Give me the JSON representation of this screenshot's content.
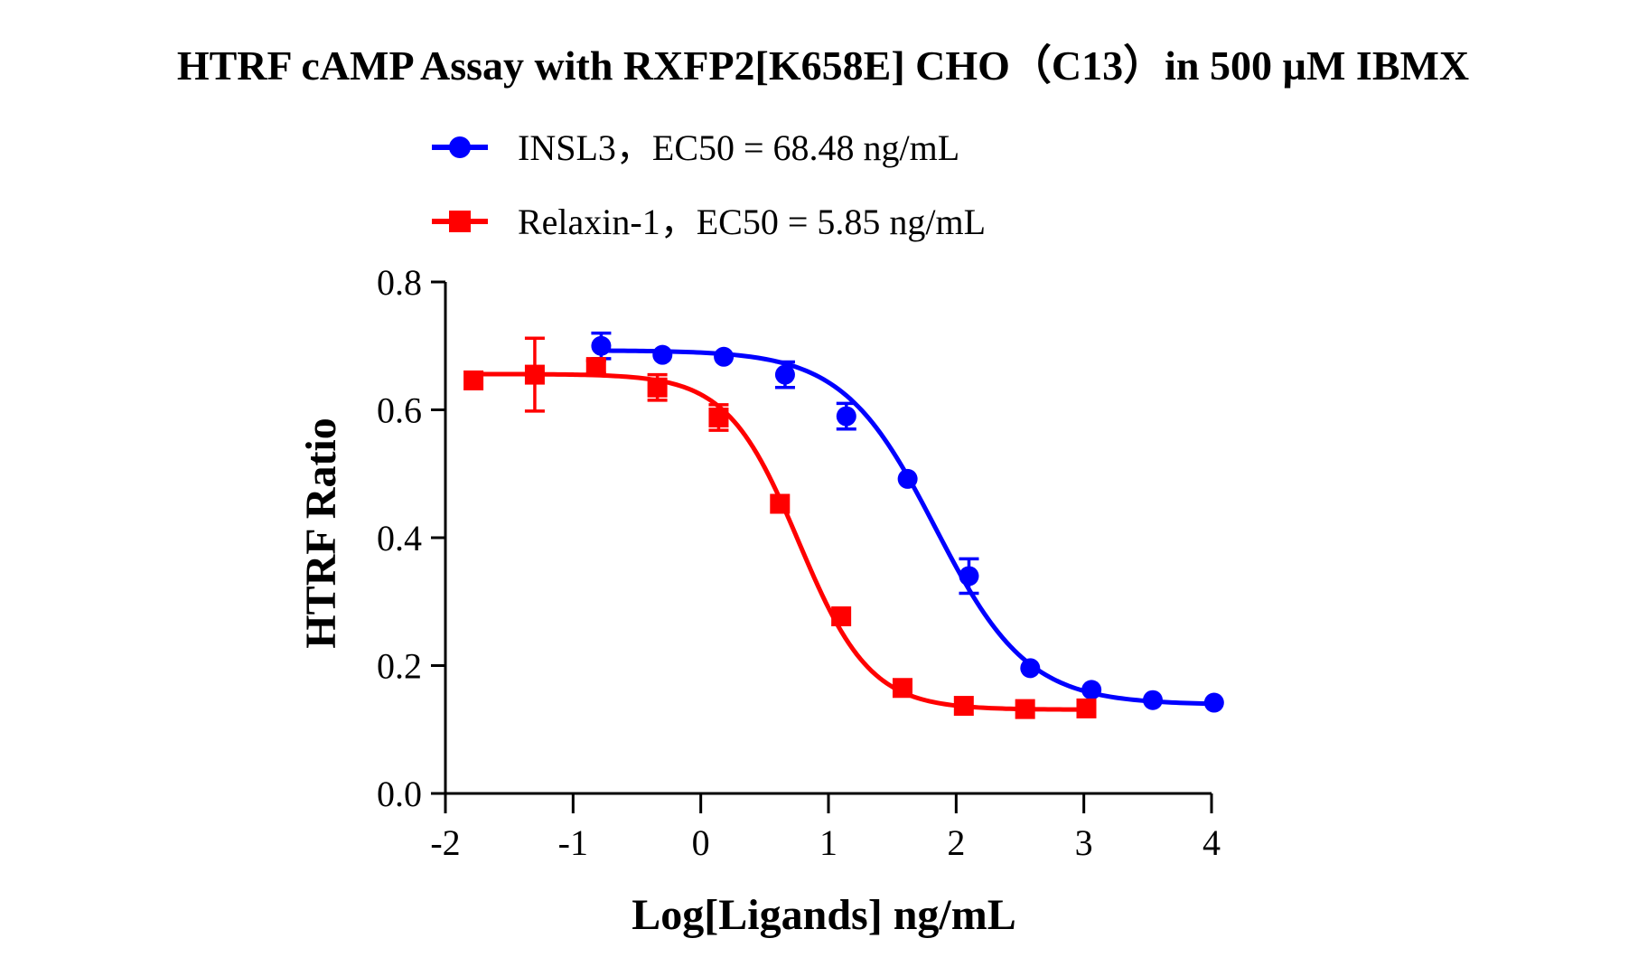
{
  "chart_data": {
    "type": "scatter",
    "title": "HTRF cAMP Assay with RXFP2[K658E] CHO（C13）in 500 µM IBMX",
    "xlabel": "Log[Ligands] ng/mL",
    "ylabel": "HTRF Ratio",
    "xlim": [
      -2,
      4
    ],
    "ylim": [
      0.0,
      0.8
    ],
    "x_ticks": [
      "-2",
      "-1",
      "0",
      "1",
      "2",
      "3",
      "4"
    ],
    "y_ticks": [
      "0.0",
      "0.2",
      "0.4",
      "0.6",
      "0.8"
    ],
    "legend_position": "top-center",
    "grid": false,
    "series": [
      {
        "name": "INSL3，EC50 = 68.48 ng/mL",
        "color": "#0000ff",
        "marker": "circle",
        "x": [
          -0.78,
          -0.3,
          0.18,
          0.66,
          1.14,
          1.62,
          2.1,
          2.58,
          3.06,
          3.54,
          4.02
        ],
        "y": [
          0.7,
          0.686,
          0.683,
          0.655,
          0.59,
          0.492,
          0.34,
          0.196,
          0.162,
          0.146,
          0.142
        ],
        "y_err": [
          0.02,
          0.0,
          0.0,
          0.02,
          0.02,
          0.0,
          0.027,
          0.0,
          0.0,
          0.0,
          0.0
        ],
        "fit": {
          "model": "four-parameter logistic",
          "top": 0.693,
          "bottom": 0.139,
          "log_ec50": 1.836,
          "hill_slope": -1.2
        }
      },
      {
        "name": "Relaxin-1，EC50 = 5.85 ng/mL",
        "color": "#ff0000",
        "marker": "square",
        "x": [
          -1.78,
          -1.3,
          -0.82,
          -0.34,
          0.14,
          0.62,
          1.1,
          1.58,
          2.06,
          2.54,
          3.02
        ],
        "y": [
          0.646,
          0.655,
          0.667,
          0.635,
          0.588,
          0.453,
          0.277,
          0.165,
          0.137,
          0.132,
          0.133
        ],
        "y_err": [
          0.0,
          0.057,
          0.01,
          0.02,
          0.02,
          0.0,
          0.0,
          0.0,
          0.0,
          0.0,
          0.0
        ],
        "fit": {
          "model": "four-parameter logistic",
          "top": 0.656,
          "bottom": 0.131,
          "log_ec50": 0.767,
          "hill_slope": -1.55
        }
      }
    ]
  }
}
